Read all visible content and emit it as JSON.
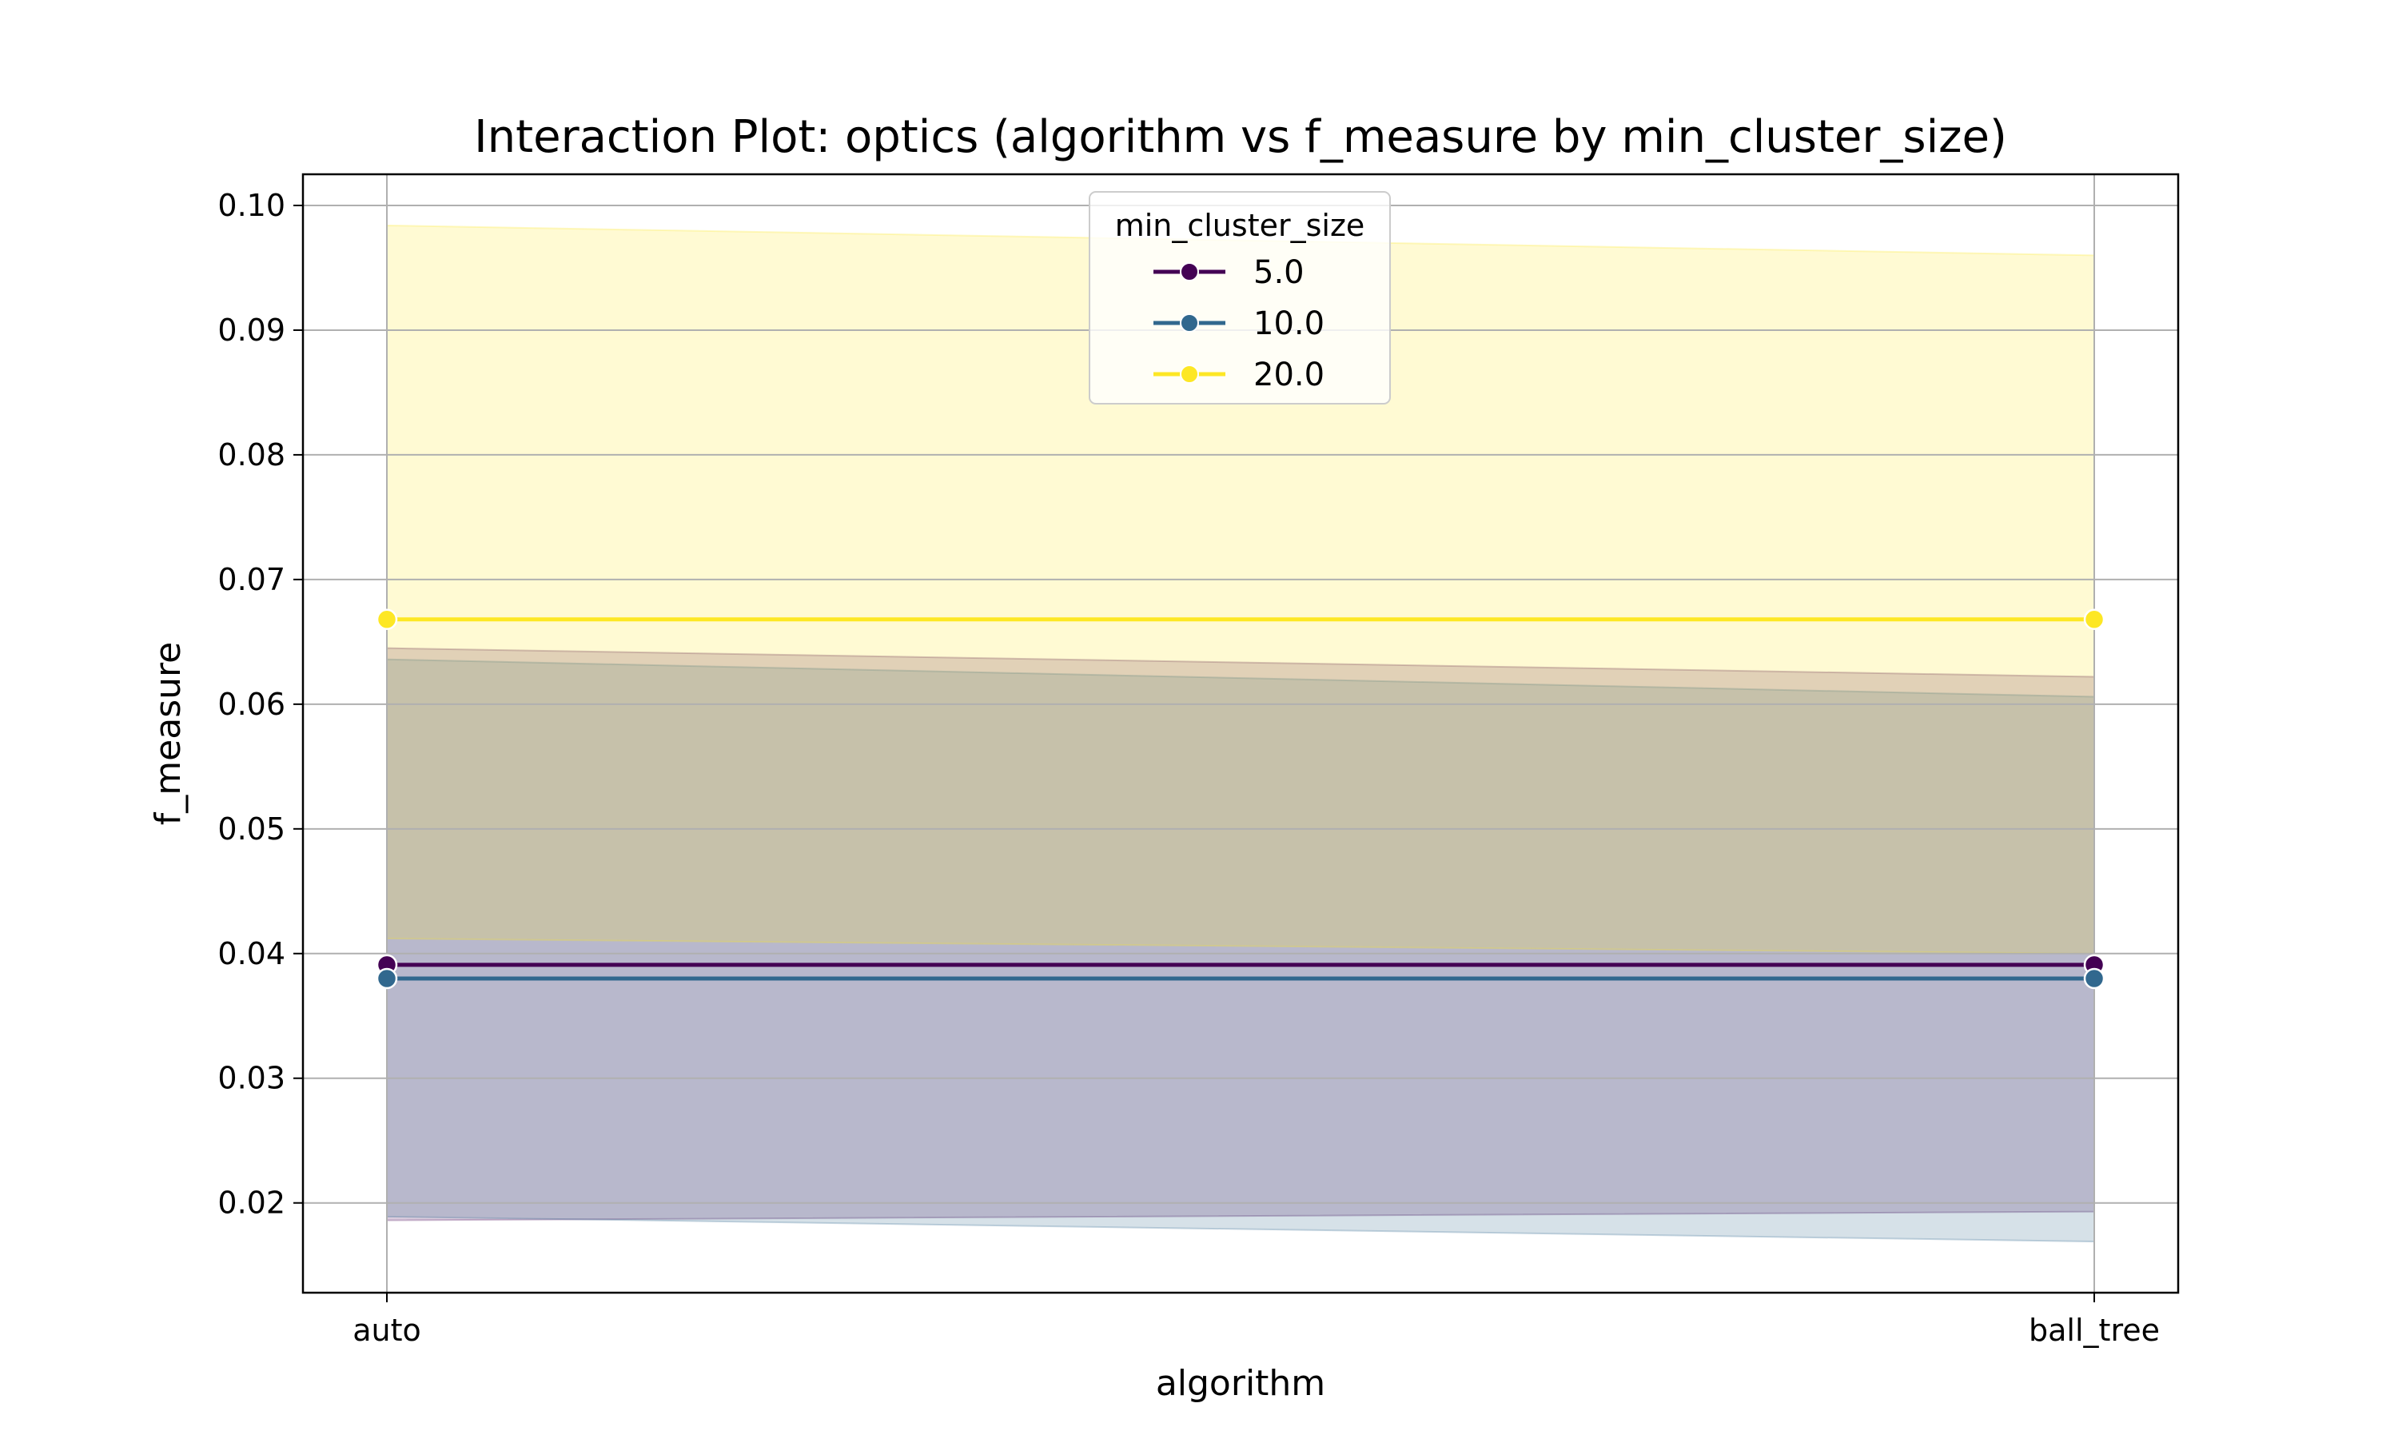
{
  "chart_data": {
    "type": "line",
    "title": "Interaction Plot: optics (algorithm vs f_measure by min_cluster_size)",
    "xlabel": "algorithm",
    "ylabel": "f_measure",
    "categories": [
      "auto",
      "ball_tree"
    ],
    "ylim": [
      0.0128,
      0.1025
    ],
    "yticks": [
      0.02,
      0.03,
      0.04,
      0.05,
      0.06,
      0.07,
      0.08,
      0.09,
      0.1
    ],
    "ytick_labels": [
      "0.02",
      "0.03",
      "0.04",
      "0.05",
      "0.06",
      "0.07",
      "0.08",
      "0.09",
      "0.10"
    ],
    "grid": true,
    "legend": {
      "title": "min_cluster_size",
      "placement": "top-center"
    },
    "series": [
      {
        "name": "5.0",
        "color": "#440154",
        "values": [
          0.0391,
          0.0391
        ],
        "ci_low": [
          0.0186,
          0.0193
        ],
        "ci_high": [
          0.0645,
          0.0622
        ]
      },
      {
        "name": "10.0",
        "color": "#31688e",
        "values": [
          0.038,
          0.038
        ],
        "ci_low": [
          0.0189,
          0.0169
        ],
        "ci_high": [
          0.0636,
          0.0606
        ]
      },
      {
        "name": "20.0",
        "color": "#fde725",
        "values": [
          0.0668,
          0.0668
        ],
        "ci_low": [
          0.0412,
          0.04
        ],
        "ci_high": [
          0.0984,
          0.096
        ]
      }
    ]
  }
}
